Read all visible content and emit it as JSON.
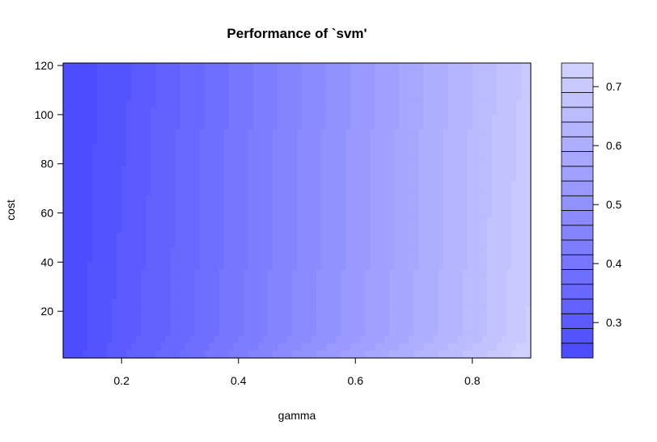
{
  "chart_data": {
    "type": "heatmap",
    "title": "Performance of `svm'",
    "xlabel": "gamma",
    "ylabel": "cost",
    "xlim": [
      0.1,
      0.9
    ],
    "ylim": [
      1,
      121
    ],
    "x_ticks": [
      "0.2",
      "0.4",
      "0.6",
      "0.8"
    ],
    "y_ticks": [
      "20",
      "40",
      "60",
      "80",
      "100",
      "120"
    ],
    "gamma_values": [
      0.1,
      0.2,
      0.3,
      0.4,
      0.5,
      0.6,
      0.7,
      0.8,
      0.9
    ],
    "cost_values": [
      1,
      10,
      121
    ],
    "error_grid": [
      [
        0.24,
        0.31,
        0.37,
        0.43,
        0.5,
        0.56,
        0.62,
        0.68,
        0.74
      ],
      [
        0.24,
        0.3,
        0.35,
        0.41,
        0.47,
        0.53,
        0.59,
        0.65,
        0.72
      ],
      [
        0.24,
        0.28,
        0.34,
        0.4,
        0.46,
        0.52,
        0.58,
        0.64,
        0.7
      ]
    ],
    "colorbar": {
      "range": [
        0.24,
        0.74
      ],
      "levels": 20,
      "ticks": [
        "0.3",
        "0.4",
        "0.5",
        "0.6",
        "0.7"
      ],
      "low_color": "#4d4dff",
      "high_color": "#d0d0ff"
    }
  }
}
